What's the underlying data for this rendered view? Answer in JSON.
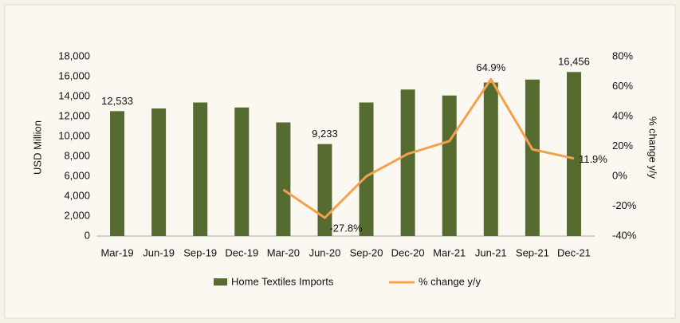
{
  "chart_data": {
    "type": "bar-line",
    "categories": [
      "Mar-19",
      "Jun-19",
      "Sep-19",
      "Dec-19",
      "Mar-20",
      "Jun-20",
      "Sep-20",
      "Dec-20",
      "Mar-21",
      "Jun-21",
      "Sep-21",
      "Dec-21"
    ],
    "ylabel": "USD Million",
    "y2label": "% change y/y",
    "ylim": [
      0,
      18000
    ],
    "yticks": [
      0,
      {
        "value": 2000,
        "label": "2,000"
      },
      {
        "value": 4000,
        "label": "4,000"
      },
      {
        "value": 6000,
        "label": "6,000"
      },
      {
        "value": 8000,
        "label": "8,000"
      },
      {
        "value": 10000,
        "label": "10,000"
      },
      {
        "value": 12000,
        "label": "12,000"
      },
      {
        "value": 14000,
        "label": "14,000"
      },
      {
        "value": 16000,
        "label": "16,000"
      },
      {
        "value": 18000,
        "label": "18,000"
      }
    ],
    "y2lim": [
      -40,
      80
    ],
    "y2ticks": [
      {
        "value": -40,
        "label": "-40%"
      },
      {
        "value": -20,
        "label": "-20%"
      },
      {
        "value": 0,
        "label": "0%"
      },
      {
        "value": 20,
        "label": "20%"
      },
      {
        "value": 40,
        "label": "40%"
      },
      {
        "value": 60,
        "label": "60%"
      },
      {
        "value": 80,
        "label": "80%"
      }
    ],
    "series": [
      {
        "name": "Home Textiles Imports",
        "type": "bar",
        "color": "#556b2f",
        "values": [
          12533,
          12800,
          13400,
          12900,
          11400,
          9233,
          13400,
          14700,
          14100,
          15400,
          15700,
          16456
        ],
        "value_labels": [
          "12,533",
          null,
          null,
          null,
          null,
          "9,233",
          null,
          null,
          null,
          null,
          null,
          "16,456"
        ]
      },
      {
        "name": "% change y/y",
        "type": "line",
        "axis": "y2",
        "color": "#f5a04c",
        "values": [
          null,
          null,
          null,
          null,
          -9,
          -27.8,
          0,
          15,
          23.5,
          64.9,
          18,
          11.9
        ],
        "value_labels": [
          null,
          null,
          null,
          null,
          null,
          "-27.8%",
          null,
          null,
          null,
          "64.9%",
          null,
          "11.9%"
        ]
      }
    ]
  }
}
